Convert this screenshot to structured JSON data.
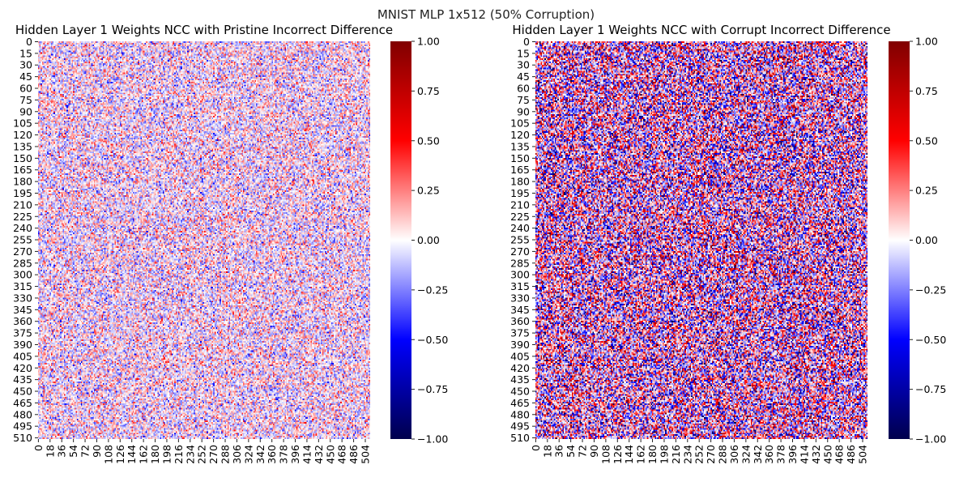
{
  "figure": {
    "suptitle": "MNIST MLP 1x512 (50% Corruption)"
  },
  "chart_data": [
    {
      "type": "heatmap",
      "title": "Hidden Layer 1 Weights NCC with Pristine Incorrect Difference",
      "rows": 512,
      "cols": 512,
      "ytick_labels": [
        "0",
        "15",
        "30",
        "45",
        "60",
        "75",
        "90",
        "105",
        "120",
        "135",
        "150",
        "165",
        "180",
        "195",
        "210",
        "225",
        "240",
        "255",
        "270",
        "285",
        "300",
        "315",
        "330",
        "345",
        "360",
        "375",
        "390",
        "405",
        "420",
        "435",
        "450",
        "465",
        "480",
        "495",
        "510"
      ],
      "xtick_labels": [
        "0",
        "18",
        "36",
        "54",
        "72",
        "90",
        "108",
        "126",
        "144",
        "162",
        "180",
        "198",
        "216",
        "234",
        "252",
        "270",
        "288",
        "306",
        "324",
        "342",
        "360",
        "378",
        "396",
        "414",
        "432",
        "450",
        "468",
        "486",
        "504"
      ],
      "colormap": "seismic",
      "vmin": -1.0,
      "vmax": 1.0,
      "colorbar_ticks": [
        "1.00",
        "0.75",
        "0.50",
        "0.25",
        "0.00",
        "−0.25",
        "−0.50",
        "−0.75",
        "−1.00"
      ],
      "value_distribution": "random noise, mostly within ±0.3 (light red/blue/white)",
      "noise_amplitude": 0.28
    },
    {
      "type": "heatmap",
      "title": "Hidden Layer 1 Weights NCC with Corrupt Incorrect Difference",
      "rows": 512,
      "cols": 512,
      "ytick_labels": [
        "0",
        "15",
        "30",
        "45",
        "60",
        "75",
        "90",
        "105",
        "120",
        "135",
        "150",
        "165",
        "180",
        "195",
        "210",
        "225",
        "240",
        "255",
        "270",
        "285",
        "300",
        "315",
        "330",
        "345",
        "360",
        "375",
        "390",
        "405",
        "420",
        "435",
        "450",
        "465",
        "480",
        "495",
        "510"
      ],
      "xtick_labels": [
        "0",
        "18",
        "36",
        "54",
        "72",
        "90",
        "108",
        "126",
        "144",
        "162",
        "180",
        "198",
        "216",
        "234",
        "252",
        "270",
        "288",
        "306",
        "324",
        "342",
        "360",
        "378",
        "396",
        "414",
        "432",
        "450",
        "468",
        "486",
        "504"
      ],
      "colormap": "seismic",
      "vmin": -1.0,
      "vmax": 1.0,
      "colorbar_ticks": [
        "1.00",
        "0.75",
        "0.50",
        "0.25",
        "0.00",
        "−0.25",
        "−0.50",
        "−0.75",
        "−1.00"
      ],
      "value_distribution": "random noise, stronger, mostly within ±0.6 (saturated red/blue)",
      "noise_amplitude": 0.6
    }
  ]
}
